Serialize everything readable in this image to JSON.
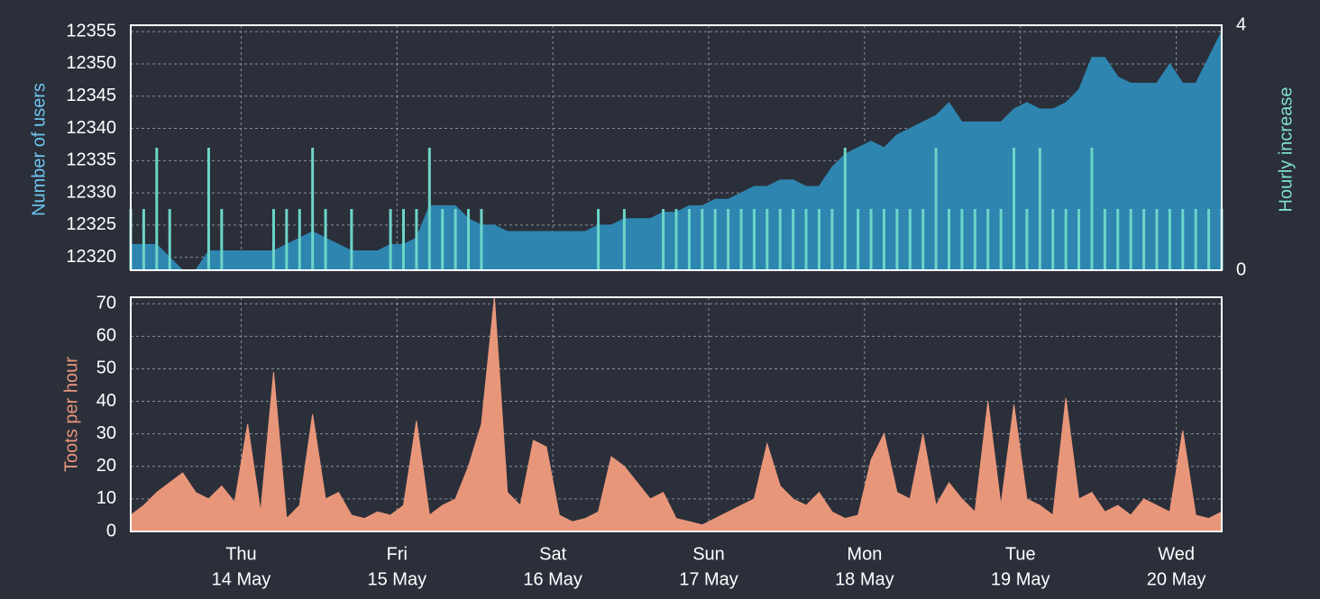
{
  "chart_data": [
    {
      "type": "area",
      "y_label": "Number of users",
      "y2_label": "Hourly increase",
      "xlim": [
        0,
        168
      ],
      "ylim": [
        12318,
        12356
      ],
      "yticks": [
        12320,
        12325,
        12330,
        12335,
        12340,
        12345,
        12350,
        12355
      ],
      "y2lim": [
        0,
        4
      ],
      "y2ticks": [
        0,
        4
      ],
      "grid": true,
      "x": [
        0,
        2,
        4,
        6,
        8,
        10,
        12,
        14,
        16,
        18,
        20,
        22,
        24,
        26,
        28,
        30,
        32,
        34,
        36,
        38,
        40,
        42,
        44,
        46,
        48,
        50,
        52,
        54,
        56,
        58,
        60,
        62,
        64,
        66,
        68,
        70,
        72,
        74,
        76,
        78,
        80,
        82,
        84,
        86,
        88,
        90,
        92,
        94,
        96,
        98,
        100,
        102,
        104,
        106,
        108,
        110,
        112,
        114,
        116,
        118,
        120,
        122,
        124,
        126,
        128,
        130,
        132,
        134,
        136,
        138,
        140,
        142,
        144,
        146,
        148,
        150,
        152,
        154,
        156,
        158,
        160,
        162,
        164,
        166,
        168
      ],
      "series": [
        {
          "name": "Number of users",
          "type": "area",
          "color": "#2e86b0",
          "values": [
            12322,
            12322,
            12322,
            12320,
            12318,
            12318,
            12321,
            12321,
            12321,
            12321,
            12321,
            12321,
            12322,
            12323,
            12324,
            12323,
            12322,
            12321,
            12321,
            12321,
            12322,
            12322,
            12323,
            12328,
            12328,
            12328,
            12326,
            12325,
            12325,
            12324,
            12324,
            12324,
            12324,
            12324,
            12324,
            12324,
            12325,
            12325,
            12326,
            12326,
            12326,
            12327,
            12327,
            12328,
            12328,
            12329,
            12329,
            12330,
            12331,
            12331,
            12332,
            12332,
            12331,
            12331,
            12334,
            12336,
            12337,
            12338,
            12337,
            12339,
            12340,
            12341,
            12342,
            12344,
            12341,
            12341,
            12341,
            12341,
            12343,
            12344,
            12343,
            12343,
            12344,
            12346,
            12351,
            12351,
            12348,
            12347,
            12347,
            12347,
            12350,
            12347,
            12347,
            12351,
            12355
          ]
        },
        {
          "name": "Hourly increase",
          "type": "bar",
          "axis": "y2",
          "color": "#6dd5c8",
          "values": [
            1,
            1,
            2,
            1,
            0,
            0,
            2,
            1,
            0,
            0,
            0,
            1,
            1,
            1,
            2,
            1,
            0,
            1,
            0,
            0,
            1,
            1,
            1,
            2,
            1,
            1,
            1,
            1,
            0,
            0,
            0,
            0,
            0,
            0,
            0,
            0,
            1,
            0,
            1,
            0,
            0,
            1,
            1,
            1,
            1,
            1,
            1,
            1,
            1,
            1,
            1,
            1,
            1,
            1,
            1,
            2,
            1,
            1,
            1,
            1,
            1,
            1,
            2,
            1,
            1,
            1,
            1,
            1,
            2,
            1,
            2,
            1,
            1,
            1,
            2,
            1,
            1,
            1,
            1,
            1,
            1,
            1,
            1,
            1,
            1
          ]
        }
      ]
    },
    {
      "type": "area",
      "y_label": "Toots per hour",
      "xlim": [
        0,
        168
      ],
      "ylim": [
        0,
        72
      ],
      "yticks": [
        0,
        10,
        20,
        30,
        40,
        50,
        60,
        70
      ],
      "grid": true,
      "xticks": [
        {
          "value": 17,
          "label": [
            "Thu",
            "14 May"
          ]
        },
        {
          "value": 41,
          "label": [
            "Fri",
            "15 May"
          ]
        },
        {
          "value": 65,
          "label": [
            "Sat",
            "16 May"
          ]
        },
        {
          "value": 89,
          "label": [
            "Sun",
            "17 May"
          ]
        },
        {
          "value": 113,
          "label": [
            "Mon",
            "18 May"
          ]
        },
        {
          "value": 137,
          "label": [
            "Tue",
            "19 May"
          ]
        },
        {
          "value": 161,
          "label": [
            "Wed",
            "20 May"
          ]
        }
      ],
      "x": [
        0,
        2,
        4,
        6,
        8,
        10,
        12,
        14,
        16,
        18,
        20,
        22,
        24,
        26,
        28,
        30,
        32,
        34,
        36,
        38,
        40,
        42,
        44,
        46,
        48,
        50,
        52,
        54,
        56,
        58,
        60,
        62,
        64,
        66,
        68,
        70,
        72,
        74,
        76,
        78,
        80,
        82,
        84,
        86,
        88,
        90,
        92,
        94,
        96,
        98,
        100,
        102,
        104,
        106,
        108,
        110,
        112,
        114,
        116,
        118,
        120,
        122,
        124,
        126,
        128,
        130,
        132,
        134,
        136,
        138,
        140,
        142,
        144,
        146,
        148,
        150,
        152,
        154,
        156,
        158,
        160,
        162,
        164,
        166,
        168
      ],
      "series": [
        {
          "name": "Toots per hour",
          "type": "area",
          "color": "#e8967a",
          "values": [
            5,
            8,
            12,
            15,
            18,
            12,
            10,
            14,
            9,
            33,
            6,
            49,
            4,
            8,
            36,
            10,
            12,
            5,
            4,
            6,
            5,
            8,
            34,
            5,
            8,
            10,
            20,
            33,
            72,
            12,
            8,
            28,
            26,
            5,
            3,
            4,
            6,
            23,
            20,
            15,
            10,
            12,
            4,
            3,
            2,
            4,
            6,
            8,
            10,
            27,
            14,
            10,
            8,
            12,
            6,
            4,
            5,
            22,
            30,
            12,
            10,
            30,
            8,
            15,
            10,
            6,
            40,
            8,
            39,
            10,
            8,
            5,
            41,
            10,
            12,
            6,
            8,
            5,
            10,
            8,
            6,
            31,
            5,
            4,
            6
          ]
        }
      ]
    }
  ]
}
